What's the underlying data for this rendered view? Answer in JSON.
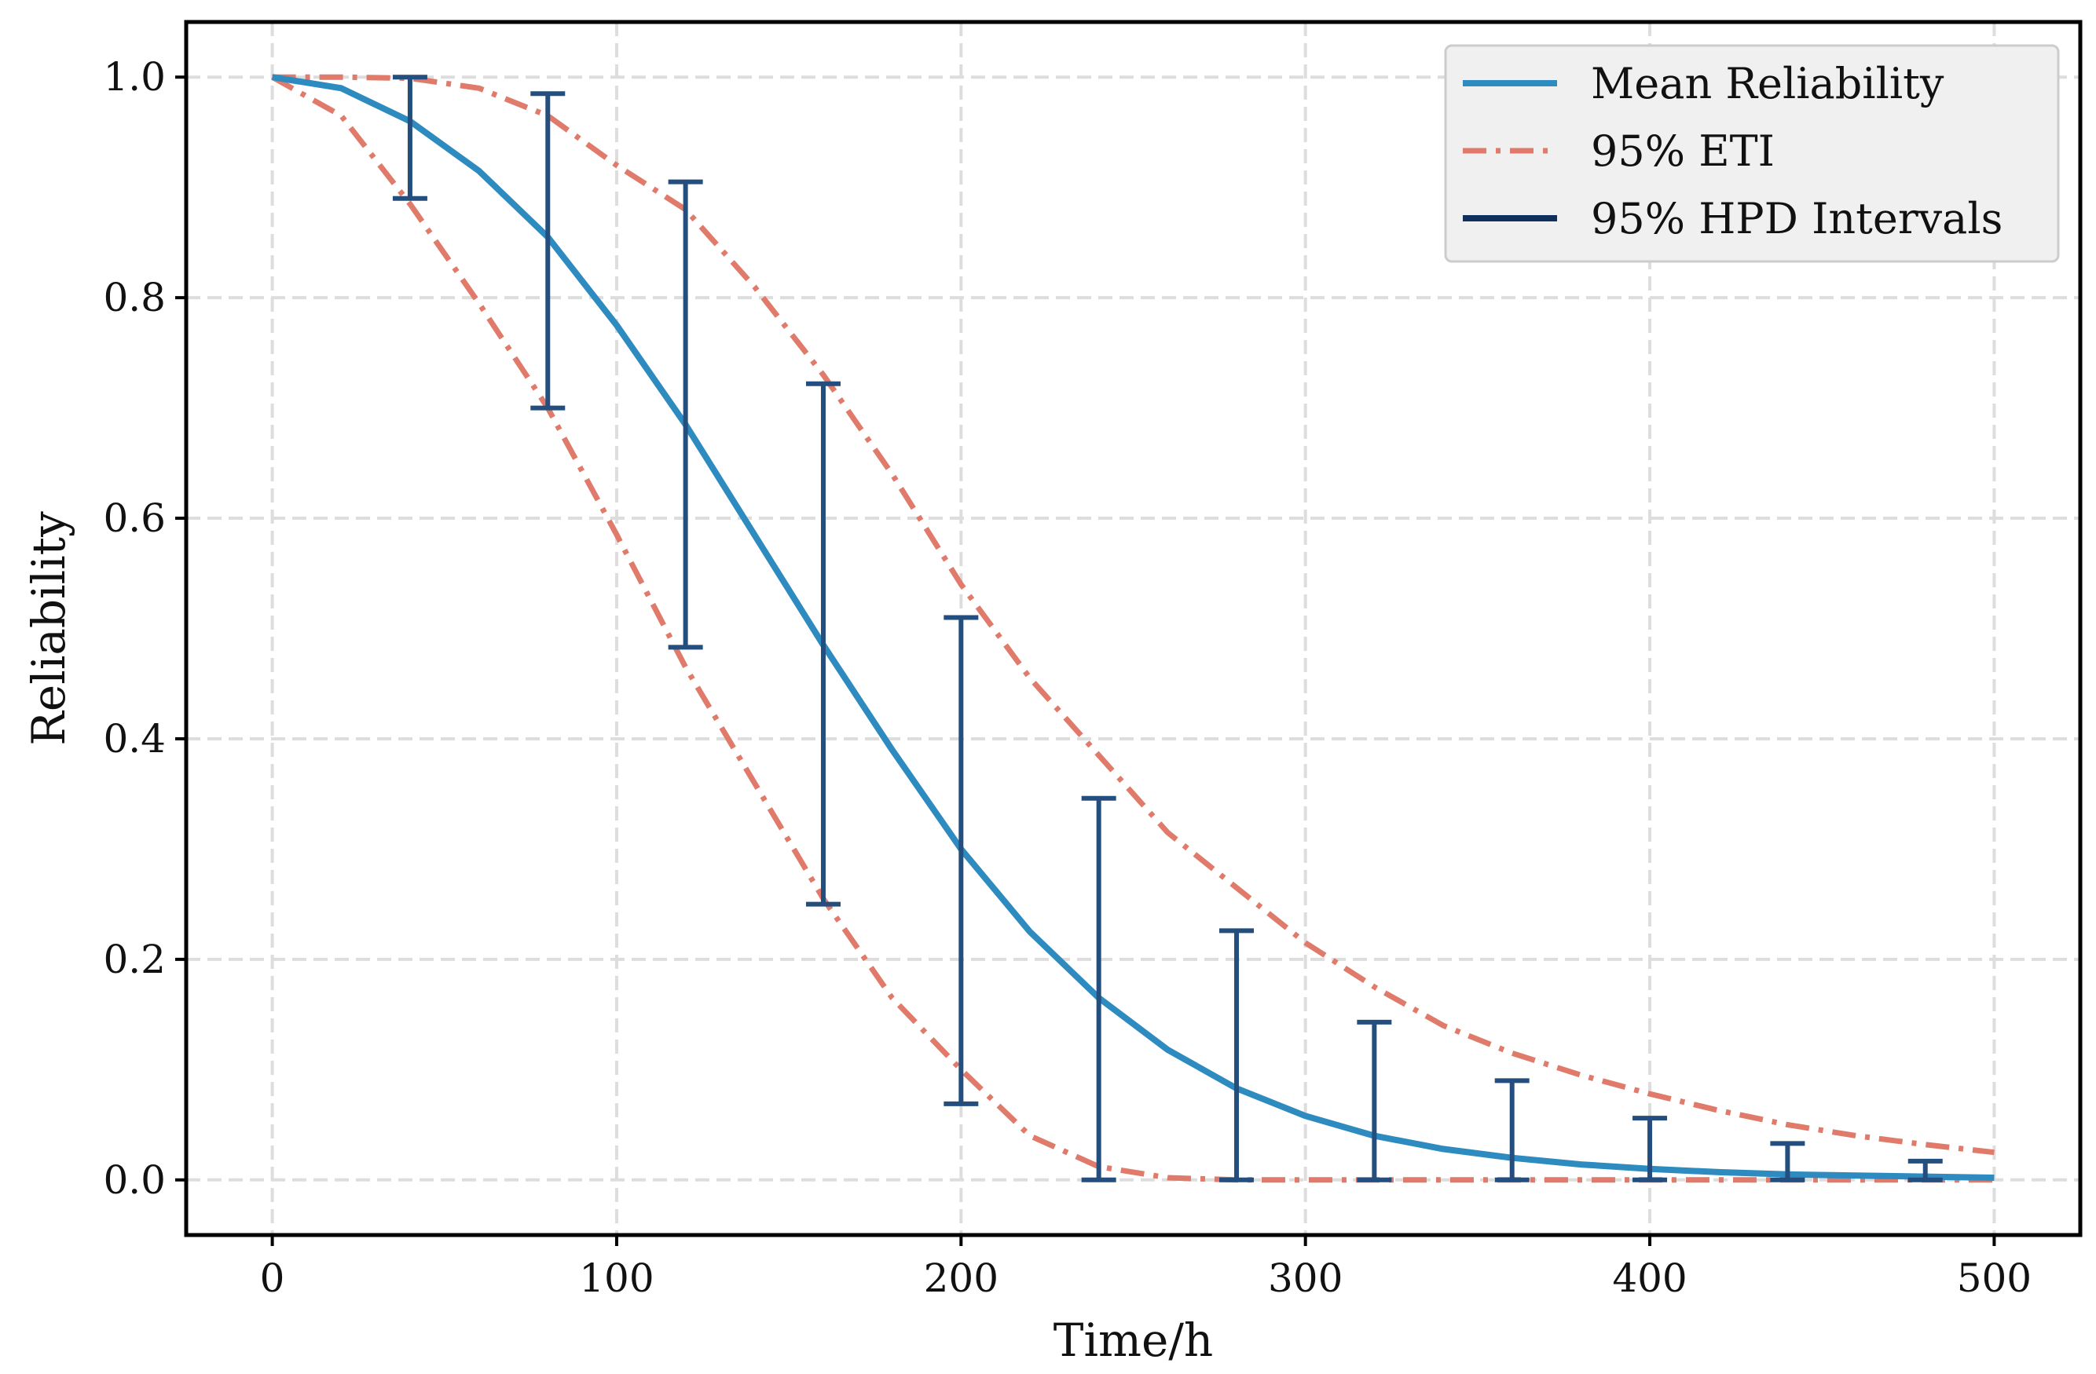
{
  "chart_data": {
    "type": "line",
    "title": "",
    "xlabel": "Time/h",
    "ylabel": "Reliability",
    "xlim": [
      -25,
      525
    ],
    "ylim": [
      -0.05,
      1.05
    ],
    "grid": true,
    "grid_style": "dashed",
    "x_ticks": [
      0,
      100,
      200,
      300,
      400,
      500
    ],
    "x_tick_labels": [
      "0",
      "100",
      "200",
      "300",
      "400",
      "500"
    ],
    "y_ticks": [
      0.0,
      0.2,
      0.4,
      0.6,
      0.8,
      1.0
    ],
    "y_tick_labels": [
      "0.0",
      "0.2",
      "0.4",
      "0.6",
      "0.8",
      "1.0"
    ],
    "legend_position": "top-right",
    "series": [
      {
        "name": "Mean Reliability",
        "style": "solid",
        "color": "#2e8bc0",
        "x": [
          0,
          20,
          40,
          60,
          80,
          100,
          120,
          140,
          160,
          180,
          200,
          220,
          240,
          260,
          280,
          300,
          320,
          340,
          360,
          380,
          400,
          420,
          440,
          460,
          480,
          500
        ],
        "y": [
          1.0,
          0.99,
          0.96,
          0.915,
          0.855,
          0.775,
          0.685,
          0.585,
          0.485,
          0.39,
          0.3,
          0.225,
          0.165,
          0.118,
          0.083,
          0.058,
          0.04,
          0.028,
          0.02,
          0.014,
          0.01,
          0.007,
          0.005,
          0.004,
          0.003,
          0.002
        ]
      },
      {
        "name": "95% ETI",
        "part": "upper",
        "style": "dash-dot",
        "color": "#e07a6a",
        "x": [
          0,
          20,
          40,
          60,
          80,
          100,
          120,
          140,
          160,
          180,
          200,
          220,
          240,
          260,
          280,
          300,
          320,
          340,
          360,
          380,
          400,
          420,
          440,
          460,
          480,
          500
        ],
        "y": [
          1.0,
          1.0,
          0.999,
          0.99,
          0.965,
          0.92,
          0.88,
          0.81,
          0.73,
          0.64,
          0.54,
          0.455,
          0.385,
          0.315,
          0.265,
          0.215,
          0.175,
          0.14,
          0.115,
          0.095,
          0.078,
          0.063,
          0.05,
          0.04,
          0.032,
          0.025
        ]
      },
      {
        "name": "95% ETI",
        "part": "lower",
        "style": "dash-dot",
        "color": "#e07a6a",
        "x": [
          0,
          20,
          40,
          60,
          80,
          100,
          120,
          140,
          160,
          180,
          200,
          220,
          240,
          260,
          280,
          300,
          320,
          340,
          360,
          380,
          400,
          420,
          440,
          460,
          480,
          500
        ],
        "y": [
          1.0,
          0.965,
          0.885,
          0.795,
          0.7,
          0.585,
          0.465,
          0.36,
          0.255,
          0.165,
          0.1,
          0.04,
          0.012,
          0.002,
          0.0,
          0.0,
          0.0,
          0.0,
          0.0,
          0.0,
          0.0,
          0.0,
          0.0,
          0.0,
          0.0,
          0.0
        ]
      }
    ],
    "hpd_intervals": {
      "name": "95% HPD Intervals",
      "color": "#234e7e",
      "x": [
        40,
        80,
        120,
        160,
        200,
        240,
        280,
        320,
        360,
        400,
        440,
        480
      ],
      "lower": [
        0.89,
        0.7,
        0.483,
        0.25,
        0.069,
        0.0,
        0.0,
        0.0,
        0.0,
        0.0,
        0.0,
        0.0
      ],
      "upper": [
        1.0,
        0.985,
        0.905,
        0.722,
        0.51,
        0.346,
        0.226,
        0.143,
        0.09,
        0.056,
        0.033,
        0.017
      ]
    },
    "legend": [
      {
        "label": "Mean Reliability",
        "style": "solid",
        "color": "#2e8bc0"
      },
      {
        "label": "95% ETI",
        "style": "dash-dot",
        "color": "#e07a6a"
      },
      {
        "label": "95% HPD Intervals",
        "style": "solid",
        "color": "#0f2f5c"
      }
    ]
  }
}
